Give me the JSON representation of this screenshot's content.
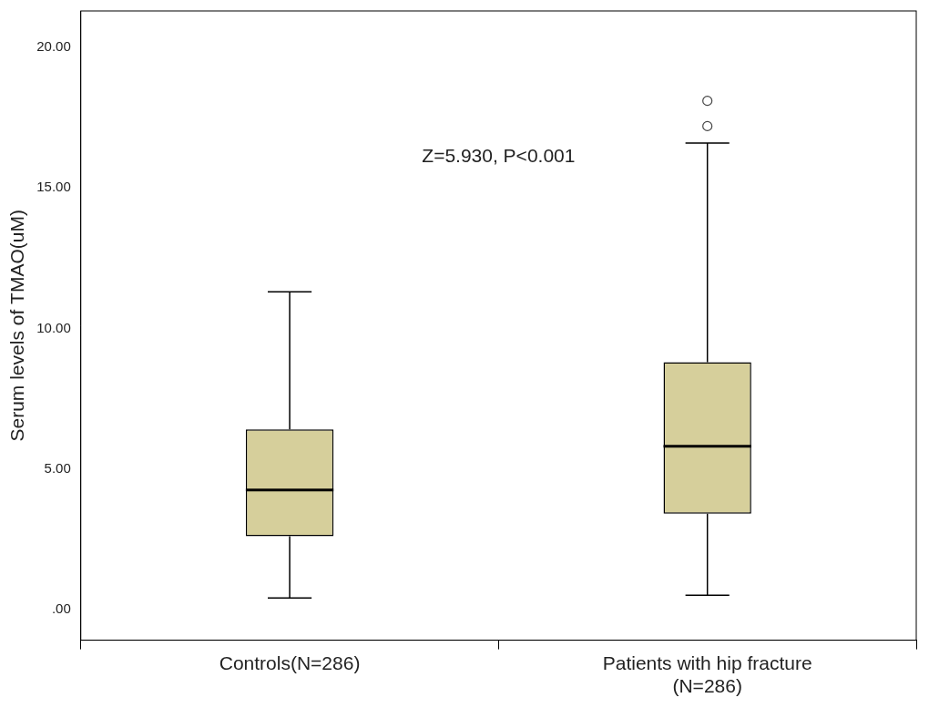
{
  "chart_data": {
    "type": "box",
    "y_label": "Serum levels of TMAO(uM)",
    "annotation": "Z=5.930, P<0.001",
    "annotation_y": 16.1,
    "categories": [
      "Controls(N=286)",
      [
        "Patients with hip fracture",
        "(N=286)"
      ]
    ],
    "boxes": [
      {
        "min": 0.4,
        "q1": 2.6,
        "median": 4.25,
        "q3": 6.4,
        "max": 11.3,
        "outliers": []
      },
      {
        "min": 0.5,
        "q1": 3.4,
        "median": 5.8,
        "q3": 8.8,
        "max": 16.6,
        "outliers": [
          17.2,
          18.1
        ]
      }
    ],
    "color": "#d6cf9b",
    "ylim": [
      -1.1,
      21.3
    ],
    "yticks": [
      {
        "value": 0,
        "label": ".00"
      },
      {
        "value": 5,
        "label": "5.00"
      },
      {
        "value": 10,
        "label": "10.00"
      },
      {
        "value": 15,
        "label": "15.00"
      },
      {
        "value": 20,
        "label": "20.00"
      }
    ],
    "grid": false
  }
}
